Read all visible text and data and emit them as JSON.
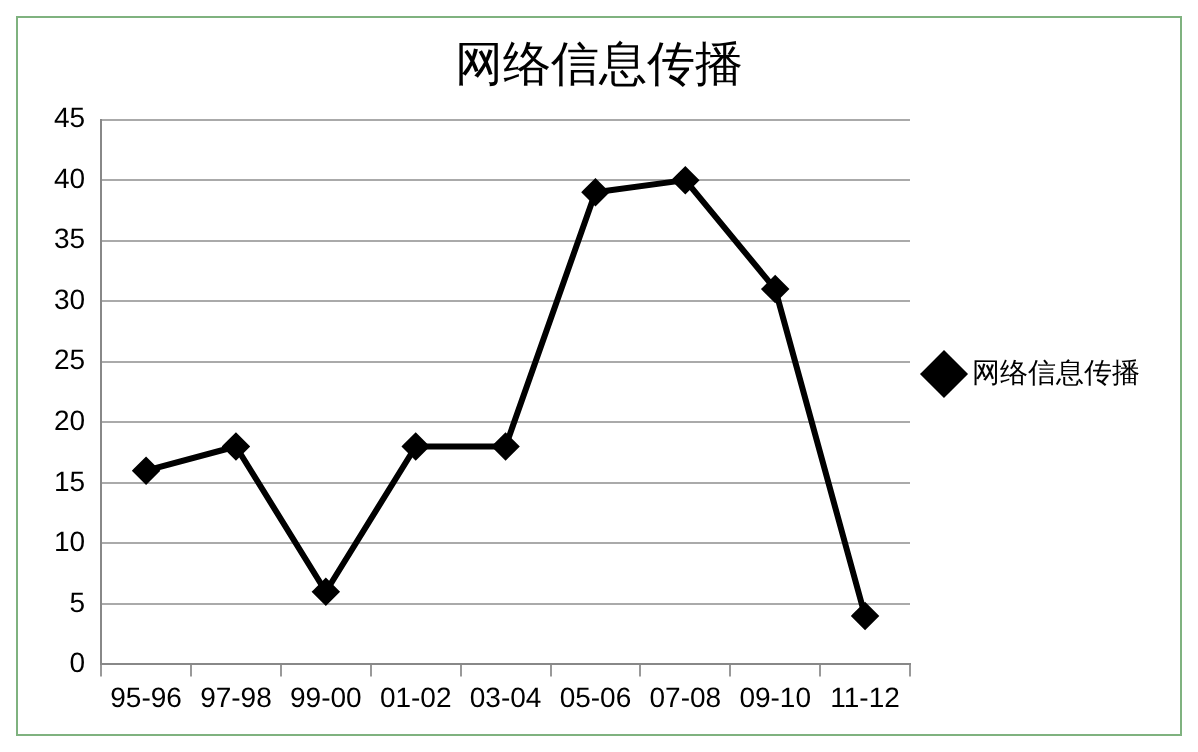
{
  "chart_data": {
    "type": "line",
    "title": "网络信息传播",
    "categories": [
      "95-96",
      "97-98",
      "99-00",
      "01-02",
      "03-04",
      "05-06",
      "07-08",
      "09-10",
      "11-12"
    ],
    "series": [
      {
        "name": "网络信息传播",
        "color": "#000000",
        "values": [
          16,
          18,
          6,
          18,
          18,
          39,
          40,
          31,
          4
        ]
      }
    ],
    "ylim": [
      0,
      45
    ],
    "yticks": [
      0,
      5,
      10,
      15,
      20,
      25,
      30,
      35,
      40,
      45
    ],
    "grid": "y",
    "legend": "right",
    "marker": "diamond",
    "line_style": "solid"
  }
}
